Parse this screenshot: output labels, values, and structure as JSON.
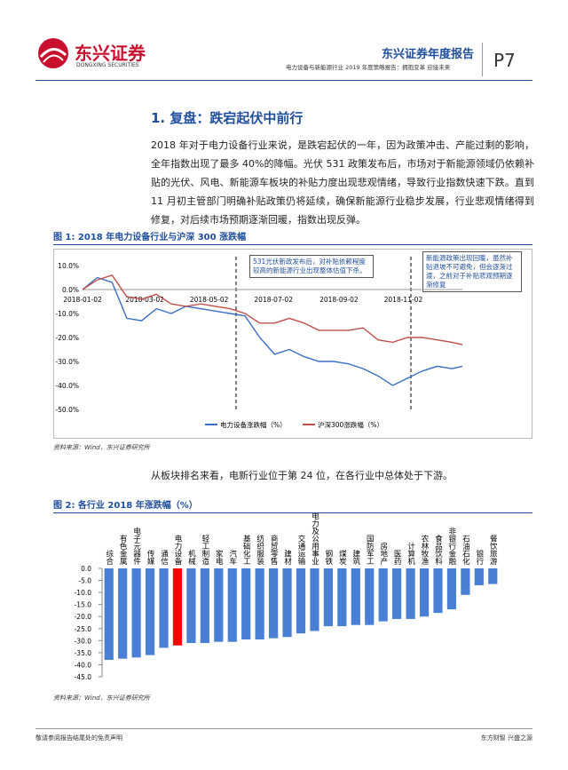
{
  "header": {
    "logo_cn": "东兴证券",
    "logo_en": "DONGXING SECURITIES",
    "title": "东兴证券年度报告",
    "subtitle": "电力设备与新能源行业 2019 年度策略报告：拥抱变革 迎接未来",
    "page": "P7"
  },
  "section_title": "1. 复盘：跌宕起伏中前行",
  "paragraph_1": "2018 年对于电力设备行业来说，是跌宕起伏的一年，因为政策冲击、产能过剩的影响，全年指数出现了最多 40%的降幅。光伏 531 政策发布后，市场对于新能源领域仍依赖补贴的光伏、风电、新能源车板块的补贴力度出现悲观情绪，导致行业指数快速下跌。直到 11 月初主管部门明确补贴政策仍将延续，确保新能源行业稳步发展，行业悲观情绪得到修复，对后续市场预期逐渐回暖，指数出现反弹。",
  "paragraph_2": "从板块排名来看，电新行业位于第 24 位，在各行业中总体处于下游。",
  "chart_data": [
    {
      "type": "line",
      "title": "图 1: 2018 年电力设备行业与沪深 300 涨跌幅",
      "x": [
        "2018-01-02",
        "2018-01-16",
        "2018-01-30",
        "2018-02-13",
        "2018-02-27",
        "2018-03-13",
        "2018-03-27",
        "2018-04-10",
        "2018-04-24",
        "2018-05-08",
        "2018-05-22",
        "2018-06-05",
        "2018-06-19",
        "2018-07-03",
        "2018-07-17",
        "2018-07-31",
        "2018-08-14",
        "2018-08-28",
        "2018-09-11",
        "2018-09-25",
        "2018-10-09",
        "2018-10-23",
        "2018-11-06",
        "2018-11-20",
        "2018-12-04",
        "2018-12-18",
        "2018-12-28"
      ],
      "series": [
        {
          "name": "电力设备涨跌幅（%）",
          "color": "#3a6fc4",
          "values": [
            0,
            5,
            3,
            -12,
            -13,
            -8,
            -10,
            -7,
            -8,
            -9,
            -10,
            -11,
            -20,
            -27,
            -25,
            -28,
            -30,
            -30,
            -31,
            -33,
            -36,
            -40,
            -37,
            -34,
            -32,
            -33,
            -32
          ]
        },
        {
          "name": "沪深300涨跌幅（%）",
          "color": "#c0504d",
          "values": [
            0,
            4,
            6,
            -3,
            -4,
            -2,
            -6,
            -7,
            -6,
            -7,
            -8,
            -10,
            -14,
            -14,
            -12,
            -14,
            -17,
            -17,
            -17,
            -16,
            -21,
            -22,
            -20,
            -20,
            -21,
            -22,
            -23
          ]
        }
      ],
      "xlim": [
        "2018-01-02",
        "2018-12-28"
      ],
      "xticks": [
        "2018-01-02",
        "2018-03-02",
        "2018-05-02",
        "2018-07-02",
        "2018-09-02",
        "2018-11-02"
      ],
      "ylim": [
        -50,
        10
      ],
      "yticks": [
        {
          "value": 10,
          "label": "10.0%"
        },
        {
          "value": 0,
          "label": "0.0%"
        },
        {
          "value": -10,
          "label": "-10.0%"
        },
        {
          "value": -20,
          "label": "-20.0%"
        },
        {
          "value": -30,
          "label": "-30.0%"
        },
        {
          "value": -40,
          "label": "-40.0%"
        },
        {
          "value": -50,
          "label": "-50.0%"
        }
      ],
      "grid": false,
      "annotations": [
        "531光伏新政发布后，对补贴依赖程度较高的新能源行业出现整体估值下杀。",
        "新能源政策出现回暖，虽然补贴退坡不可避免，但会逐渐过渡，之前对于补贴悲观预期逐渐修复"
      ],
      "source": "资料来源：Wind，东兴证券研究所"
    },
    {
      "type": "bar",
      "title": "图 2: 各行业 2018 年涨跌幅（%）",
      "categories": [
        "综合",
        "有色金属",
        "电子元器件",
        "传媒",
        "通信",
        "电力设备",
        "机械",
        "轻工制造",
        "家电",
        "汽车",
        "基础化工",
        "纺织服装",
        "商贸零售",
        "建材",
        "交通运输",
        "电力及公用事业",
        "钢铁",
        "煤炭",
        "建筑",
        "国防军工",
        "房地产",
        "医药",
        "计算机",
        "农林牧渔",
        "食品饮料",
        "非银行金融",
        "石油石化",
        "银行",
        "餐饮旅游"
      ],
      "values": [
        -38,
        -37.5,
        -37,
        -36,
        -33,
        -32,
        -31,
        -31,
        -30.5,
        -30.5,
        -29.5,
        -29.5,
        -29,
        -28.5,
        -27,
        -26,
        -24,
        -24,
        -23.5,
        -23.5,
        -22,
        -21,
        -21,
        -20,
        -18.5,
        -17,
        -11,
        -7,
        -6.5
      ],
      "color": "#4a7fd6",
      "highlight": {
        "index": 5,
        "color": "#ff0000"
      },
      "ylim": [
        -45,
        0
      ],
      "yticks": [
        {
          "value": 0,
          "label": "0.0"
        },
        {
          "value": -5,
          "label": "-5.0"
        },
        {
          "value": -10,
          "label": "-10.0"
        },
        {
          "value": -15,
          "label": "-15.0"
        },
        {
          "value": -20,
          "label": "-20.0"
        },
        {
          "value": -25,
          "label": "-25.0"
        },
        {
          "value": -30,
          "label": "-30.0"
        },
        {
          "value": -35,
          "label": "-35.0"
        },
        {
          "value": -40,
          "label": "-40.0"
        },
        {
          "value": -45,
          "label": "-45.0"
        }
      ],
      "grid": false,
      "source": "资料来源：Wind，东兴证券研究所"
    }
  ],
  "footer": {
    "left": "敬请参阅报告结尾处的免责声明",
    "right": "东方财智 兴盛之源"
  }
}
